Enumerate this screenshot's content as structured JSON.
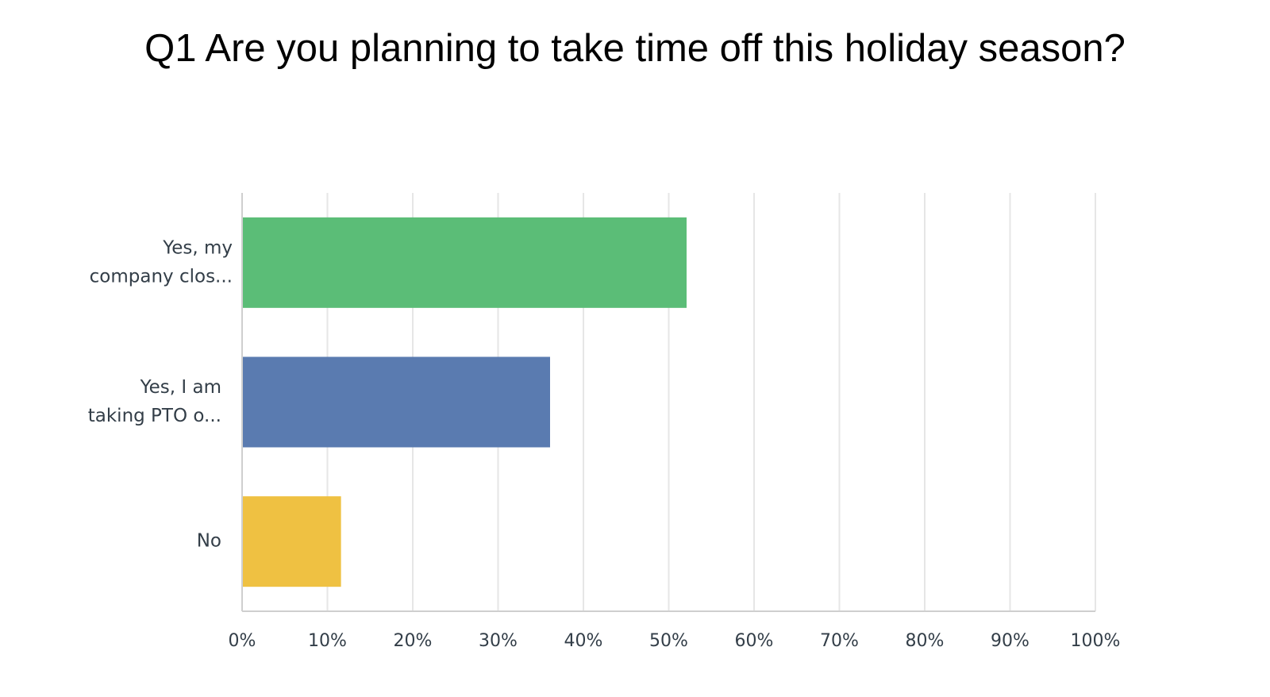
{
  "chart_data": {
    "type": "hbar",
    "title": "Q1 Are you planning to take time off this holiday season?",
    "categories": [
      [
        "Yes, my",
        "company clos..."
      ],
      [
        "Yes, I am",
        "taking PTO o..."
      ],
      [
        "No"
      ]
    ],
    "values": [
      52,
      36,
      11.5
    ],
    "colors": [
      "#5bbd77",
      "#5a7bb0",
      "#efc142"
    ],
    "xlim": [
      0,
      100
    ],
    "xticks": [
      {
        "value": 0,
        "label": "0%"
      },
      {
        "value": 10,
        "label": "10%"
      },
      {
        "value": 20,
        "label": "20%"
      },
      {
        "value": 30,
        "label": "30%"
      },
      {
        "value": 40,
        "label": "40%"
      },
      {
        "value": 50,
        "label": "50%"
      },
      {
        "value": 60,
        "label": "60%"
      },
      {
        "value": 70,
        "label": "70%"
      },
      {
        "value": 80,
        "label": "80%"
      },
      {
        "value": 90,
        "label": "90%"
      },
      {
        "value": 100,
        "label": "100%"
      }
    ],
    "grid": true
  }
}
